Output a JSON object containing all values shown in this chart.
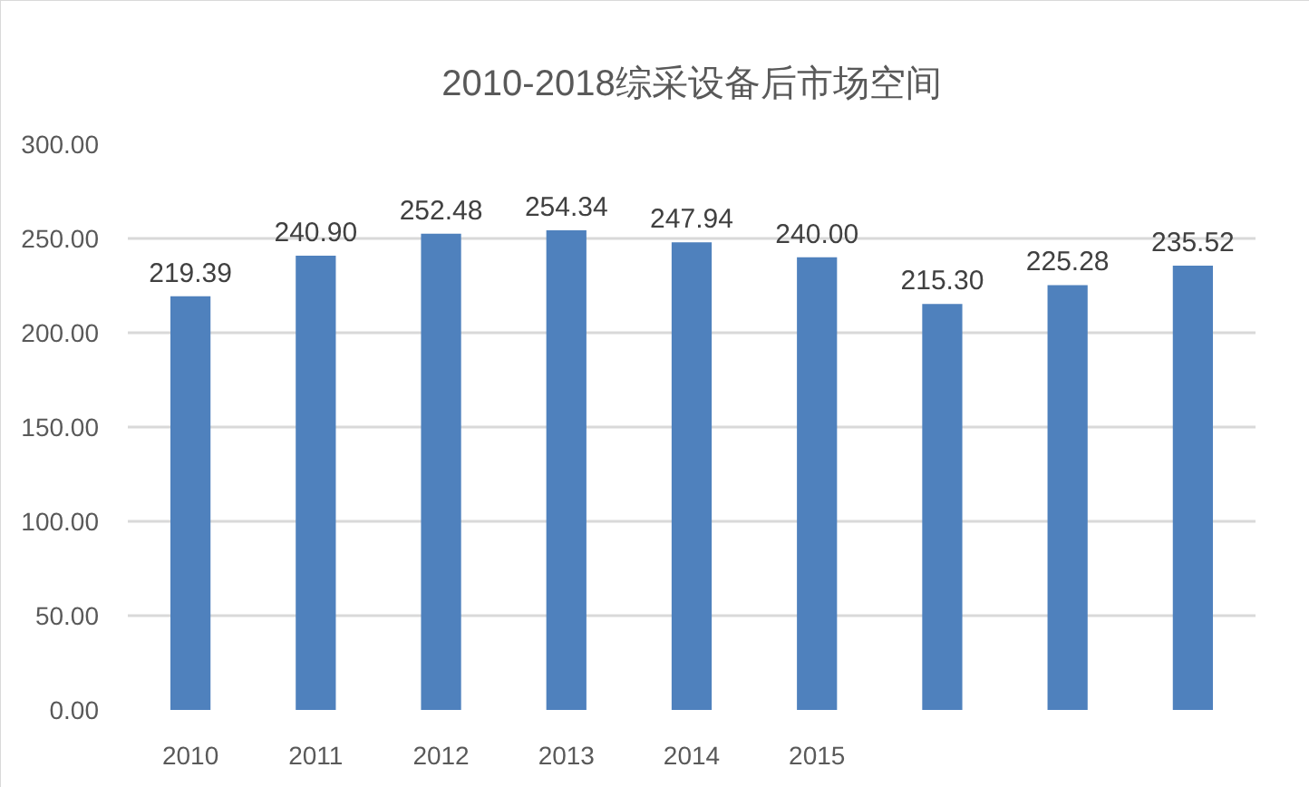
{
  "chart_data": {
    "type": "bar",
    "title": "2010-2018综采设备后市场空间",
    "categories": [
      "2010",
      "2011",
      "2012",
      "2013",
      "2014",
      "2015",
      null,
      null,
      null
    ],
    "values": [
      219.39,
      240.9,
      252.48,
      254.34,
      247.94,
      240.0,
      215.3,
      225.28,
      235.52
    ],
    "value_labels": [
      "219.39",
      "240.90",
      "252.48",
      "254.34",
      "247.94",
      "240.00",
      "215.30",
      "225.28",
      "235.52"
    ],
    "color": "#4f81bd",
    "ylim": [
      0,
      300
    ],
    "yticks": [
      {
        "value": 0,
        "label": "0.00"
      },
      {
        "value": 50,
        "label": "50.00"
      },
      {
        "value": 100,
        "label": "100.00"
      },
      {
        "value": 150,
        "label": "150.00"
      },
      {
        "value": 200,
        "label": "200.00"
      },
      {
        "value": 250,
        "label": "250.00"
      },
      {
        "value": 300,
        "label": "300.00"
      }
    ],
    "grid": "y"
  }
}
